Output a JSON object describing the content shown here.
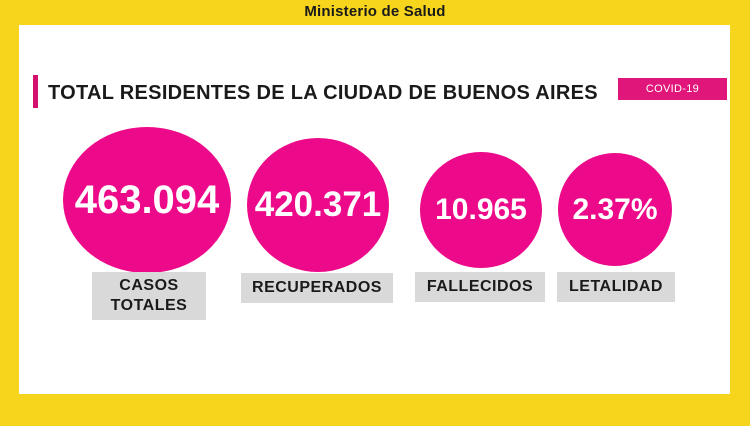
{
  "header": {
    "ministry": "Ministerio de Salud"
  },
  "panel": {
    "title": "TOTAL RESIDENTES DE LA CIUDAD DE BUENOS AIRES",
    "badge": "COVID-19"
  },
  "stats": [
    {
      "value": "463.094",
      "label_line1": "CASOS",
      "label_line2": "TOTALES"
    },
    {
      "value": "420.371",
      "label_line1": "RECUPERADOS"
    },
    {
      "value": "10.965",
      "label_line1": "FALLECIDOS"
    },
    {
      "value": "2.37%",
      "label_line1": "LETALIDAD"
    }
  ],
  "colors": {
    "background": "#f7d51d",
    "accent": "#ec0a8a",
    "label_bg": "#d9d9d9"
  }
}
